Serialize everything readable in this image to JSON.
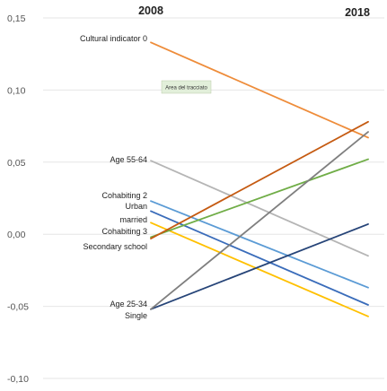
{
  "chart_data": {
    "type": "line",
    "title": "",
    "x": [
      "2008",
      "2018"
    ],
    "ylim": [
      -0.1,
      0.15
    ],
    "yticks": [
      "0,15",
      "0,10",
      "0,05",
      "0,00",
      "-0,05",
      "-0,10"
    ],
    "grid": true,
    "legend": "none",
    "annotation": "Area del tracciato",
    "series": [
      {
        "name": "Cultural indicator 0",
        "values": [
          0.133,
          0.067
        ],
        "color": "#ee8c3a"
      },
      {
        "name": "Age 55-64",
        "values": [
          0.051,
          -0.015
        ],
        "color": "#b5b5b5"
      },
      {
        "name": "Cohabiting 2",
        "values": [
          0.023,
          -0.037
        ],
        "color": "#5b9bd5"
      },
      {
        "name": "Urban",
        "values": [
          0.016,
          -0.049
        ],
        "color": "#3a6cba"
      },
      {
        "name": "married",
        "values": [
          0.008,
          -0.057
        ],
        "color": "#ffc000"
      },
      {
        "name": "Cohabiting 3",
        "values": [
          -0.002,
          0.052
        ],
        "color": "#70ad47"
      },
      {
        "name": "Secondary school",
        "values": [
          -0.003,
          0.078
        ],
        "color": "#c55a11"
      },
      {
        "name": "Age 25-34",
        "values": [
          -0.052,
          0.007
        ],
        "color": "#264478"
      },
      {
        "name": "Single",
        "values": [
          -0.052,
          0.071
        ],
        "color": "#7f7f7f"
      }
    ]
  }
}
